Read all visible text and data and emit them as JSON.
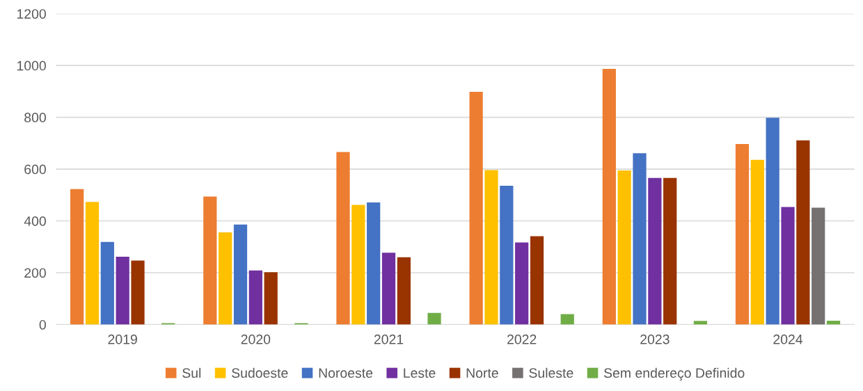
{
  "chart_data": {
    "type": "bar",
    "categories": [
      "2019",
      "2020",
      "2021",
      "2022",
      "2023",
      "2024"
    ],
    "series": [
      {
        "name": "Sul",
        "color": "#ed7d31",
        "values": [
          523,
          494,
          666,
          898,
          987,
          697
        ]
      },
      {
        "name": "Sudoeste",
        "color": "#ffc000",
        "values": [
          473,
          356,
          462,
          596,
          595,
          636
        ]
      },
      {
        "name": "Noroeste",
        "color": "#4472c4",
        "values": [
          319,
          386,
          471,
          536,
          661,
          798
        ]
      },
      {
        "name": "Leste",
        "color": "#7030a0",
        "values": [
          262,
          209,
          277,
          317,
          566,
          454
        ]
      },
      {
        "name": "Norte",
        "color": "#993300",
        "values": [
          247,
          202,
          260,
          341,
          566,
          711
        ]
      },
      {
        "name": "Suleste",
        "color": "#767171",
        "values": [
          null,
          null,
          null,
          null,
          null,
          451
        ]
      },
      {
        "name": "Sem endereço Definido",
        "color": "#70ad47",
        "values": [
          5,
          5,
          45,
          40,
          14,
          15
        ]
      }
    ],
    "ylim": [
      0,
      1200
    ],
    "yticks": [
      0,
      200,
      400,
      600,
      800,
      1000,
      1200
    ],
    "grid": "y",
    "legend": "bottom"
  }
}
